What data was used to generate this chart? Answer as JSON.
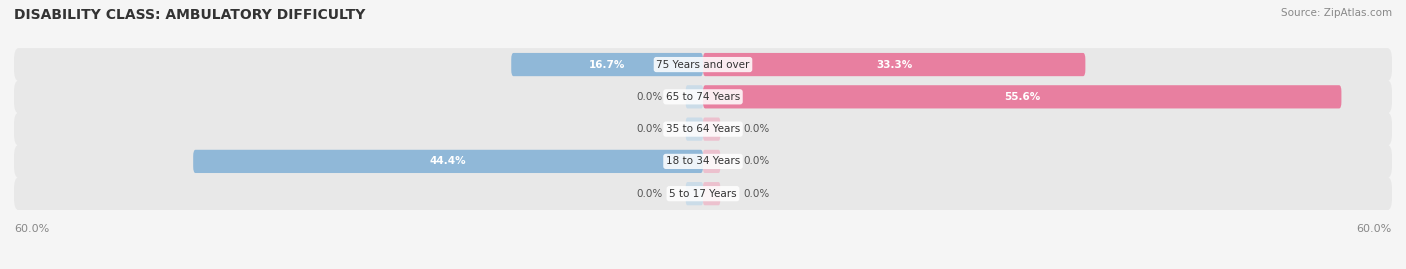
{
  "title": "DISABILITY CLASS: AMBULATORY DIFFICULTY",
  "source": "Source: ZipAtlas.com",
  "categories": [
    "5 to 17 Years",
    "18 to 34 Years",
    "35 to 64 Years",
    "65 to 74 Years",
    "75 Years and over"
  ],
  "male_values": [
    0.0,
    44.4,
    0.0,
    0.0,
    16.7
  ],
  "female_values": [
    0.0,
    0.0,
    0.0,
    55.6,
    33.3
  ],
  "max_val": 60.0,
  "male_color": "#90b8d8",
  "female_color": "#e87fa0",
  "male_color_light": "#b8d4e8",
  "female_color_light": "#f0a8be",
  "bar_bg_color": "#e8e8e8",
  "row_bg_color_odd": "#f0f0f0",
  "row_bg_color_even": "#e8e8e8",
  "label_color": "#555555",
  "title_color": "#333333",
  "axis_label_color": "#888888",
  "center_label_color": "#333333",
  "value_label_color_inside": "#ffffff",
  "value_label_color_outside": "#555555"
}
